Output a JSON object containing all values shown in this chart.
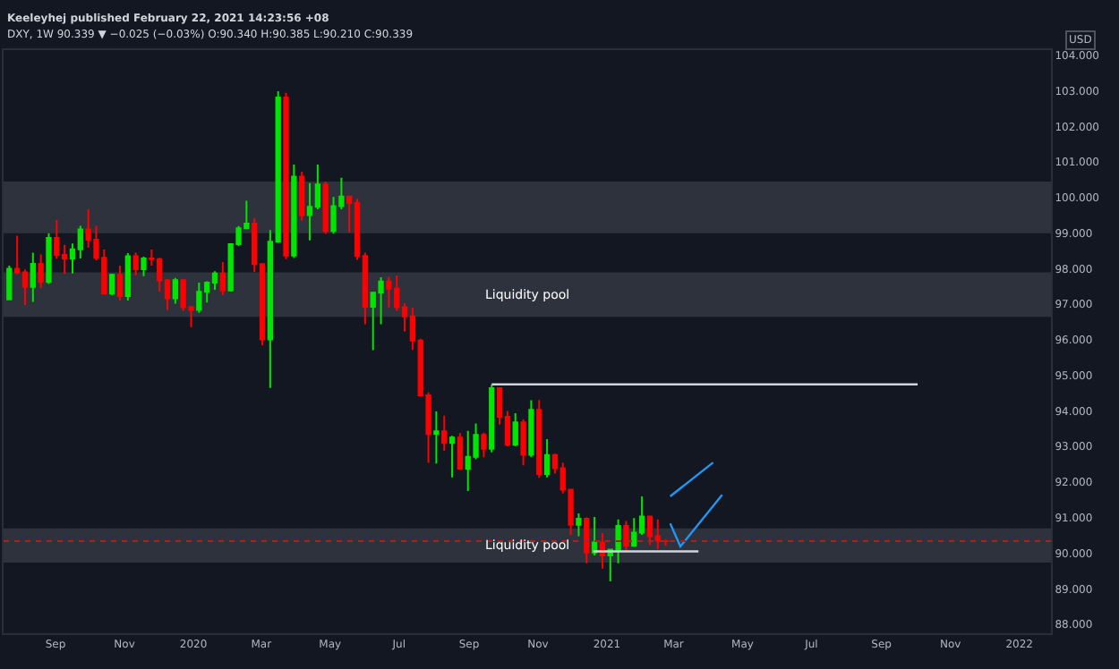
{
  "chart_data": {
    "type": "candlestick",
    "title": "Keeleyhej published February 22, 2021 14:23:56 +08",
    "subtitle": "DXY, 1W 90.339 ▼ −0.025 (−0.03%) O:90.340 H:90.385 L:90.210 C:90.339",
    "ylabel": "USD",
    "x": [
      "2019-07-22",
      "2019-07-29",
      "2019-08-05",
      "2019-08-12",
      "2019-08-19",
      "2019-08-26",
      "2019-09-02",
      "2019-09-09",
      "2019-09-16",
      "2019-09-23",
      "2019-09-30",
      "2019-10-07",
      "2019-10-14",
      "2019-10-21",
      "2019-10-28",
      "2019-11-04",
      "2019-11-11",
      "2019-11-18",
      "2019-11-25",
      "2019-12-02",
      "2019-12-09",
      "2019-12-16",
      "2019-12-23",
      "2019-12-30",
      "2020-01-06",
      "2020-01-13",
      "2020-01-20",
      "2020-01-27",
      "2020-02-03",
      "2020-02-10",
      "2020-02-17",
      "2020-02-24",
      "2020-03-02",
      "2020-03-09",
      "2020-03-16",
      "2020-03-23",
      "2020-03-30",
      "2020-04-06",
      "2020-04-13",
      "2020-04-20",
      "2020-04-27",
      "2020-05-04",
      "2020-05-11",
      "2020-05-18",
      "2020-05-25",
      "2020-06-01",
      "2020-06-08",
      "2020-06-15",
      "2020-06-22",
      "2020-06-29",
      "2020-07-06",
      "2020-07-13",
      "2020-07-20",
      "2020-07-27",
      "2020-08-03",
      "2020-08-10",
      "2020-08-17",
      "2020-08-24",
      "2020-08-31",
      "2020-09-07",
      "2020-09-14",
      "2020-09-21",
      "2020-09-28",
      "2020-10-05",
      "2020-10-12",
      "2020-10-19",
      "2020-10-26",
      "2020-11-02",
      "2020-11-09",
      "2020-11-16",
      "2020-11-23",
      "2020-11-30",
      "2020-12-07",
      "2020-12-14",
      "2020-12-21",
      "2020-12-28",
      "2021-01-04",
      "2021-01-11",
      "2021-01-18",
      "2021-01-25",
      "2021-02-01",
      "2021-02-08",
      "2021-02-15",
      "2021-02-22"
    ],
    "ohlc": [
      [
        97.14,
        98.09,
        97.13,
        98.0
      ],
      [
        98.0,
        98.93,
        97.85,
        97.9
      ],
      [
        97.9,
        97.98,
        96.98,
        97.49
      ],
      [
        97.49,
        98.45,
        97.07,
        98.14
      ],
      [
        98.14,
        98.4,
        97.45,
        97.63
      ],
      [
        97.63,
        99.0,
        97.57,
        98.87
      ],
      [
        98.87,
        99.37,
        98.28,
        98.39
      ],
      [
        98.39,
        98.67,
        97.86,
        98.28
      ],
      [
        98.28,
        98.71,
        97.87,
        98.55
      ],
      [
        98.55,
        99.21,
        98.29,
        99.11
      ],
      [
        99.11,
        99.67,
        98.59,
        98.82
      ],
      [
        98.82,
        99.21,
        98.23,
        98.31
      ],
      [
        98.31,
        98.54,
        97.29,
        97.3
      ],
      [
        97.3,
        97.86,
        97.25,
        97.83
      ],
      [
        97.83,
        98.09,
        97.11,
        97.23
      ],
      [
        97.23,
        98.44,
        97.11,
        98.35
      ],
      [
        98.35,
        98.45,
        97.81,
        97.99
      ],
      [
        97.99,
        98.34,
        97.79,
        98.29
      ],
      [
        98.29,
        98.54,
        98.09,
        98.27
      ],
      [
        98.27,
        98.31,
        97.35,
        97.67
      ],
      [
        97.67,
        97.71,
        96.84,
        97.17
      ],
      [
        97.17,
        97.74,
        97.02,
        97.68
      ],
      [
        97.68,
        97.7,
        96.82,
        96.92
      ],
      [
        96.92,
        96.96,
        96.36,
        96.84
      ],
      [
        96.84,
        97.61,
        96.76,
        97.35
      ],
      [
        97.35,
        97.65,
        97.05,
        97.61
      ],
      [
        97.61,
        97.93,
        97.41,
        97.87
      ],
      [
        97.87,
        98.19,
        97.26,
        97.39
      ],
      [
        97.39,
        98.72,
        97.36,
        98.69
      ],
      [
        98.69,
        99.2,
        98.64,
        99.14
      ],
      [
        99.14,
        99.91,
        99.11,
        99.27
      ],
      [
        99.27,
        99.43,
        97.91,
        98.13
      ],
      [
        98.13,
        98.15,
        95.85,
        96.01
      ],
      [
        96.01,
        99.09,
        94.65,
        98.76
      ],
      [
        98.76,
        102.99,
        98.73,
        102.82
      ],
      [
        102.82,
        102.95,
        98.27,
        98.37
      ],
      [
        98.37,
        100.93,
        98.3,
        100.59
      ],
      [
        100.59,
        100.73,
        99.35,
        99.51
      ],
      [
        99.51,
        100.41,
        98.8,
        99.74
      ],
      [
        99.74,
        100.93,
        99.67,
        100.37
      ],
      [
        100.37,
        100.45,
        98.98,
        99.06
      ],
      [
        99.06,
        100.02,
        98.99,
        99.76
      ],
      [
        99.76,
        100.56,
        99.67,
        100.03
      ],
      [
        100.03,
        100.03,
        99.02,
        99.85
      ],
      [
        99.85,
        99.97,
        98.25,
        98.36
      ],
      [
        98.36,
        98.45,
        96.44,
        96.93
      ],
      [
        96.93,
        97.35,
        95.71,
        97.33
      ],
      [
        97.33,
        97.76,
        96.44,
        97.64
      ],
      [
        97.64,
        97.78,
        96.91,
        97.44
      ],
      [
        97.44,
        97.81,
        96.82,
        96.92
      ],
      [
        96.92,
        97.03,
        96.23,
        96.66
      ],
      [
        96.66,
        96.91,
        95.72,
        95.98
      ],
      [
        95.98,
        96.03,
        94.43,
        94.44
      ],
      [
        94.44,
        94.52,
        92.54,
        93.35
      ],
      [
        93.35,
        93.99,
        92.52,
        93.43
      ],
      [
        93.43,
        93.87,
        92.88,
        93.1
      ],
      [
        93.1,
        93.3,
        92.13,
        93.25
      ],
      [
        93.25,
        93.38,
        92.37,
        92.38
      ],
      [
        92.38,
        93.44,
        91.75,
        92.71
      ],
      [
        92.71,
        93.65,
        92.64,
        93.33
      ],
      [
        93.33,
        93.39,
        92.7,
        92.94
      ],
      [
        92.94,
        94.74,
        92.84,
        94.64
      ],
      [
        94.64,
        94.65,
        93.62,
        93.84
      ],
      [
        93.84,
        94.0,
        93.01,
        93.05
      ],
      [
        93.05,
        93.94,
        93.01,
        93.68
      ],
      [
        93.68,
        93.77,
        92.47,
        92.77
      ],
      [
        92.77,
        94.3,
        92.7,
        94.03
      ],
      [
        94.03,
        94.31,
        92.12,
        92.23
      ],
      [
        92.23,
        93.21,
        92.13,
        92.76
      ],
      [
        92.76,
        92.8,
        92.24,
        92.39
      ],
      [
        92.39,
        92.55,
        91.68,
        91.79
      ],
      [
        91.79,
        91.8,
        90.51,
        90.8
      ],
      [
        90.8,
        91.12,
        90.48,
        90.97
      ],
      [
        90.97,
        91.01,
        89.72,
        90.02
      ],
      [
        90.02,
        91.02,
        89.94,
        90.3
      ],
      [
        90.3,
        90.57,
        89.57,
        89.94
      ],
      [
        89.94,
        90.11,
        89.21,
        90.1
      ],
      [
        90.1,
        90.95,
        89.72,
        90.77
      ],
      [
        90.77,
        90.91,
        90.04,
        90.21
      ],
      [
        90.21,
        90.99,
        90.18,
        90.58
      ],
      [
        90.58,
        91.6,
        90.52,
        91.03
      ],
      [
        91.03,
        91.05,
        90.23,
        90.48
      ],
      [
        90.48,
        90.95,
        90.12,
        90.36
      ],
      [
        90.34,
        90.385,
        90.21,
        90.339
      ]
    ],
    "colors": [
      "#00e600",
      "#ff0000",
      "#ff0000",
      "#00e600",
      "#ff0000",
      "#00e600",
      "#ff0000",
      "#ff0000",
      "#00e600",
      "#00e600",
      "#ff0000",
      "#ff0000",
      "#ff0000",
      "#00e600",
      "#ff0000",
      "#00e600",
      "#ff0000",
      "#00e600",
      "#ff0000",
      "#ff0000",
      "#ff0000",
      "#00e600",
      "#ff0000",
      "#ff0000",
      "#00e600",
      "#00e600",
      "#00e600",
      "#ff0000",
      "#00e600",
      "#00e600",
      "#00e600",
      "#ff0000",
      "#ff0000",
      "#00e600",
      "#00e600",
      "#ff0000",
      "#00e600",
      "#ff0000",
      "#00e600",
      "#00e600",
      "#ff0000",
      "#00e600",
      "#00e600",
      "#ff0000",
      "#ff0000",
      "#ff0000",
      "#00e600",
      "#00e600",
      "#ff0000",
      "#ff0000",
      "#ff0000",
      "#ff0000",
      "#ff0000",
      "#ff0000",
      "#00e600",
      "#ff0000",
      "#00e600",
      "#ff0000",
      "#00e600",
      "#00e600",
      "#ff0000",
      "#00e600",
      "#ff0000",
      "#ff0000",
      "#00e600",
      "#ff0000",
      "#00e600",
      "#ff0000",
      "#00e600",
      "#ff0000",
      "#ff0000",
      "#ff0000",
      "#00e600",
      "#ff0000",
      "#00e600",
      "#ff0000",
      "#00e600",
      "#00e600",
      "#ff0000",
      "#00e600",
      "#00e600",
      "#ff0000",
      "#ff0000",
      "#ff0000"
    ],
    "series": [
      {
        "type": "line",
        "color": "#d1d4dc",
        "x": [
          "2020-09-21",
          "2021-10-03"
        ],
        "values": [
          94.75,
          94.75
        ]
      },
      {
        "type": "line",
        "color": "#d1d4dc",
        "x": [
          "2020-12-20",
          "2021-03-23"
        ],
        "values": [
          90.05,
          90.05
        ]
      },
      {
        "type": "line",
        "color": "#2196f3",
        "x": [
          "2021-02-26",
          "2021-04-05"
        ],
        "values": [
          91.6,
          92.55
        ]
      },
      {
        "type": "line",
        "color": "#2196f3",
        "x": [
          "2021-02-26",
          "2021-03-07",
          "2021-04-13"
        ],
        "values": [
          90.84,
          90.19,
          91.64
        ]
      }
    ],
    "bands": [
      {
        "axis": "y",
        "from": 99.0,
        "to": 100.45,
        "color": "#363a45"
      },
      {
        "axis": "y",
        "from": 96.65,
        "to": 97.9,
        "color": "#363a45",
        "label": "Liquidity pool"
      },
      {
        "axis": "y",
        "from": 89.74,
        "to": 90.7,
        "color": "#363a45",
        "label": "Liquidity pool"
      }
    ],
    "ref_lines": [
      {
        "axis": "y",
        "value": 90.339,
        "color": "#b71c1c",
        "line_style": "dotted"
      }
    ],
    "xlim": [
      "2019-07-17",
      "2022-01-29"
    ],
    "xticks": [
      {
        "value": "2019-09-01",
        "label": "Sep"
      },
      {
        "value": "2019-11-01",
        "label": "Nov"
      },
      {
        "value": "2020-01-01",
        "label": "2020"
      },
      {
        "value": "2020-03-01",
        "label": "Mar"
      },
      {
        "value": "2020-05-01",
        "label": "May"
      },
      {
        "value": "2020-07-01",
        "label": "Jul"
      },
      {
        "value": "2020-09-01",
        "label": "Sep"
      },
      {
        "value": "2020-11-01",
        "label": "Nov"
      },
      {
        "value": "2021-01-01",
        "label": "2021"
      },
      {
        "value": "2021-03-01",
        "label": "Mar"
      },
      {
        "value": "2021-05-01",
        "label": "May"
      },
      {
        "value": "2021-07-01",
        "label": "Jul"
      },
      {
        "value": "2021-09-01",
        "label": "Sep"
      },
      {
        "value": "2021-11-01",
        "label": "Nov"
      },
      {
        "value": "2022-01-01",
        "label": "2022"
      }
    ],
    "ylim": [
      87.75,
      104.15
    ],
    "yticks": [
      {
        "value": 88,
        "label": "88.000"
      },
      {
        "value": 89,
        "label": "89.000"
      },
      {
        "value": 90,
        "label": "90.000"
      },
      {
        "value": 91,
        "label": "91.000"
      },
      {
        "value": 92,
        "label": "92.000"
      },
      {
        "value": 93,
        "label": "93.000"
      },
      {
        "value": 94,
        "label": "94.000"
      },
      {
        "value": 95,
        "label": "95.000"
      },
      {
        "value": 96,
        "label": "96.000"
      },
      {
        "value": 97,
        "label": "97.000"
      },
      {
        "value": 98,
        "label": "98.000"
      },
      {
        "value": 99,
        "label": "99.000"
      },
      {
        "value": 100,
        "label": "100.000"
      },
      {
        "value": 101,
        "label": "101.000"
      },
      {
        "value": 102,
        "label": "102.000"
      },
      {
        "value": 103,
        "label": "103.000"
      },
      {
        "value": 104,
        "label": "104.000"
      }
    ],
    "grid": false,
    "marker": "none",
    "line_style": "solid"
  }
}
